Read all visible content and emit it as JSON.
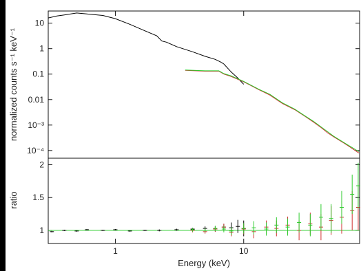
{
  "chart_data": [
    {
      "type": "line",
      "panel": "spectrum",
      "ylabel": "normalized counts s⁻¹ keV⁻¹",
      "xscale": "log",
      "yscale": "log",
      "xlim": [
        0.3,
        80
      ],
      "ylim": [
        5e-05,
        30
      ],
      "y_ticks": [
        {
          "value": 10,
          "label": "10"
        },
        {
          "value": 1,
          "label": "1"
        },
        {
          "value": 0.1,
          "label": "0.1"
        },
        {
          "value": 0.01,
          "label": "0.01"
        },
        {
          "value": 0.001,
          "label": "10⁻³"
        },
        {
          "value": 0.0001,
          "label": "10⁻⁴"
        }
      ],
      "series": [
        {
          "color": "#000000",
          "x": [
            0.3,
            0.35,
            0.4,
            0.5,
            0.6,
            0.8,
            1.0,
            1.3,
            1.7,
            2.1,
            2.3,
            2.5,
            3.0,
            4.0,
            5.0,
            6.0,
            6.6,
            7.0,
            8.0,
            9.0,
            10.0
          ],
          "y": [
            16,
            19,
            21,
            25,
            23,
            20,
            15,
            9,
            5,
            3.2,
            2.0,
            1.8,
            1.2,
            0.75,
            0.5,
            0.38,
            0.3,
            0.25,
            0.12,
            0.07,
            0.04
          ]
        },
        {
          "color": "#d03030",
          "x": [
            3.5,
            5,
            6.4,
            7,
            8,
            10,
            13,
            16,
            20,
            25,
            30,
            35,
            40,
            45,
            50,
            60,
            70,
            79
          ],
          "y": [
            0.14,
            0.13,
            0.13,
            0.1,
            0.08,
            0.05,
            0.025,
            0.015,
            0.007,
            0.004,
            0.0022,
            0.0013,
            0.0008,
            0.0005,
            0.00035,
            0.0002,
            0.00012,
            8e-05
          ]
        },
        {
          "color": "#2ecc2e",
          "x": [
            3.5,
            5,
            6.4,
            7,
            8,
            10,
            13,
            16,
            20,
            25,
            30,
            35,
            40,
            45,
            50,
            60,
            70,
            79
          ],
          "y": [
            0.145,
            0.135,
            0.135,
            0.105,
            0.085,
            0.052,
            0.026,
            0.016,
            0.0075,
            0.0042,
            0.0023,
            0.0014,
            0.00085,
            0.00055,
            0.00037,
            0.00021,
            0.00013,
            9e-05
          ]
        }
      ]
    },
    {
      "type": "scatter",
      "panel": "ratio",
      "ylabel": "ratio",
      "xlabel": "Energy (keV)",
      "xscale": "log",
      "xlim": [
        0.3,
        80
      ],
      "ylim": [
        0.8,
        2.1
      ],
      "x_ticks": [
        {
          "value": 1,
          "label": "1"
        },
        {
          "value": 10,
          "label": "10"
        }
      ],
      "y_ticks": [
        {
          "value": 1,
          "label": "1"
        },
        {
          "value": 1.5,
          "label": "1.5"
        },
        {
          "value": 2,
          "label": "2"
        }
      ],
      "reference_line": {
        "y": 1,
        "color": "#2ecc2e"
      },
      "series": [
        {
          "color": "#000000",
          "x": [
            0.32,
            0.4,
            0.5,
            0.6,
            0.8,
            1.0,
            1.3,
            1.7,
            2.2,
            3.0,
            4.0,
            5.0,
            6.0,
            7.0,
            8.0,
            9.0,
            10.0
          ],
          "y": [
            0.98,
            1.0,
            0.99,
            1.01,
            1.0,
            1.01,
            0.99,
            1.0,
            1.0,
            1.01,
            1.02,
            1.03,
            1.02,
            1.05,
            1.04,
            1.06,
            1.03
          ],
          "err": [
            0.01,
            0.01,
            0.01,
            0.01,
            0.01,
            0.01,
            0.01,
            0.01,
            0.015,
            0.015,
            0.02,
            0.03,
            0.04,
            0.05,
            0.08,
            0.1,
            0.12
          ]
        },
        {
          "color": "#d03030",
          "x": [
            4,
            5,
            6,
            7,
            8,
            10,
            12,
            15,
            18,
            22,
            27,
            33,
            40,
            48,
            58,
            70,
            78
          ],
          "y": [
            1.0,
            0.98,
            1.02,
            1.05,
            0.97,
            1.02,
            0.98,
            1.05,
            1.03,
            1.08,
            1.0,
            1.1,
            1.05,
            1.15,
            1.2,
            1.3,
            1.35
          ],
          "err": [
            0.03,
            0.03,
            0.04,
            0.05,
            0.06,
            0.08,
            0.1,
            0.1,
            0.12,
            0.13,
            0.15,
            0.17,
            0.2,
            0.22,
            0.25,
            0.3,
            0.35
          ]
        },
        {
          "color": "#2ecc2e",
          "x": [
            4,
            5,
            6,
            7,
            8,
            10,
            12,
            15,
            18,
            22,
            27,
            33,
            40,
            48,
            58,
            70,
            78
          ],
          "y": [
            1.01,
            1.0,
            1.03,
            1.02,
            0.99,
            1.03,
            1.04,
            1.02,
            1.08,
            1.05,
            1.12,
            1.08,
            1.2,
            1.18,
            1.35,
            1.55,
            1.68
          ],
          "err": [
            0.03,
            0.03,
            0.04,
            0.05,
            0.06,
            0.08,
            0.1,
            0.1,
            0.12,
            0.13,
            0.15,
            0.17,
            0.2,
            0.22,
            0.25,
            0.3,
            0.35
          ]
        }
      ]
    }
  ]
}
